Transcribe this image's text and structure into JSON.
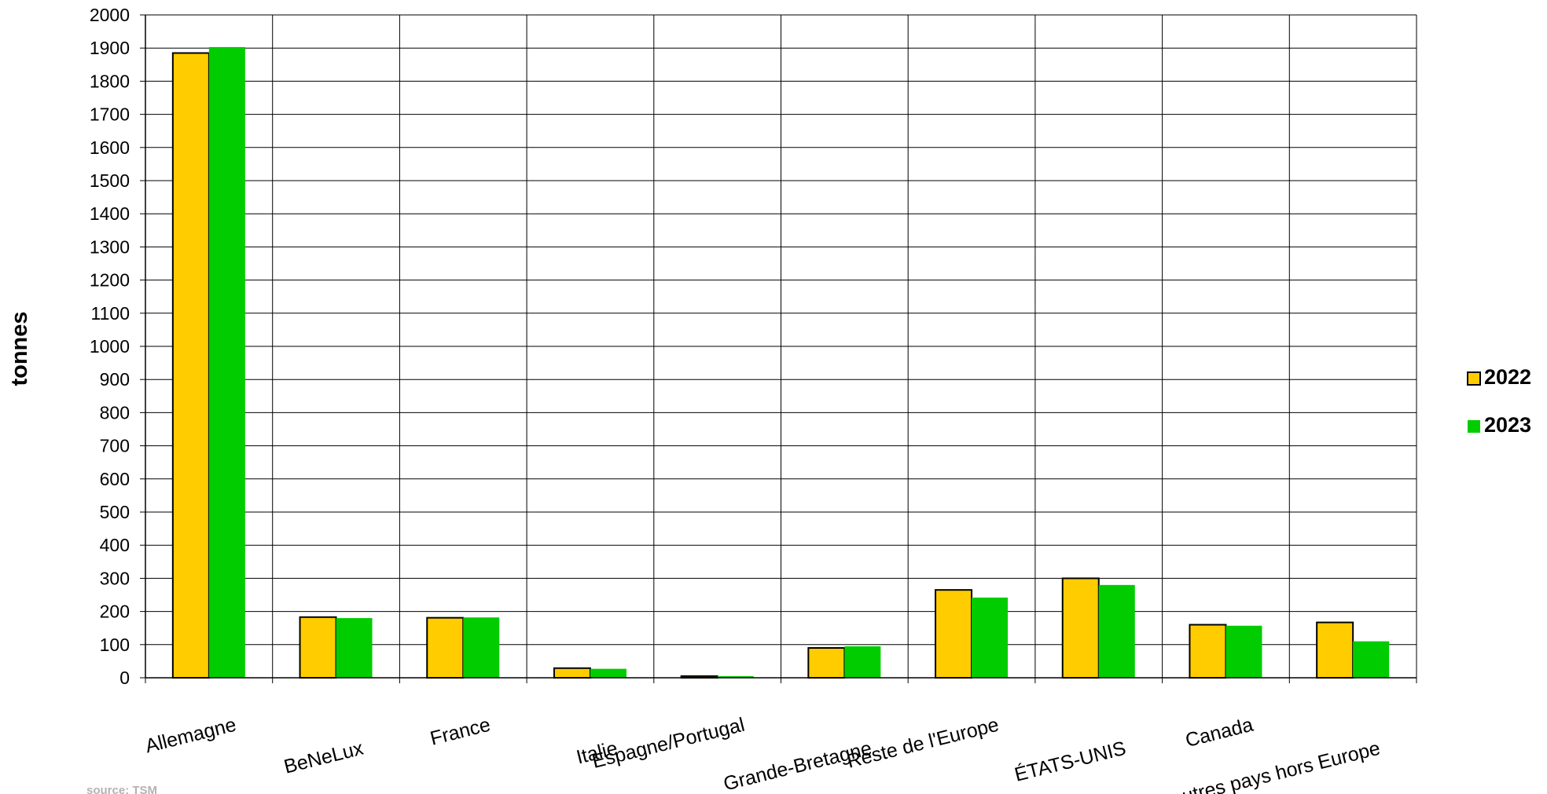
{
  "chart_data": {
    "type": "bar",
    "title": "",
    "xlabel": "",
    "ylabel": "tonnes",
    "ylim": [
      0,
      2000
    ],
    "ytick_step": 100,
    "grid": true,
    "legend_position": "right",
    "categories": [
      "Allemagne",
      "BeNeLux",
      "France",
      "Italie",
      "Espagne/Portugal",
      "Grande-Bretagne",
      "Reste de l'Europe",
      "ÉTATS-UNIS",
      "Canada",
      "autres pays hors Europe"
    ],
    "series": [
      {
        "name": "2022",
        "color": "#FFCC00",
        "values": [
          1885,
          183,
          181,
          29,
          5,
          90,
          265,
          300,
          160,
          167
        ]
      },
      {
        "name": "2023",
        "color": "#00CC00",
        "values": [
          1903,
          180,
          182,
          27,
          5,
          95,
          242,
          280,
          157,
          110
        ]
      }
    ],
    "source": "source: TSM"
  }
}
